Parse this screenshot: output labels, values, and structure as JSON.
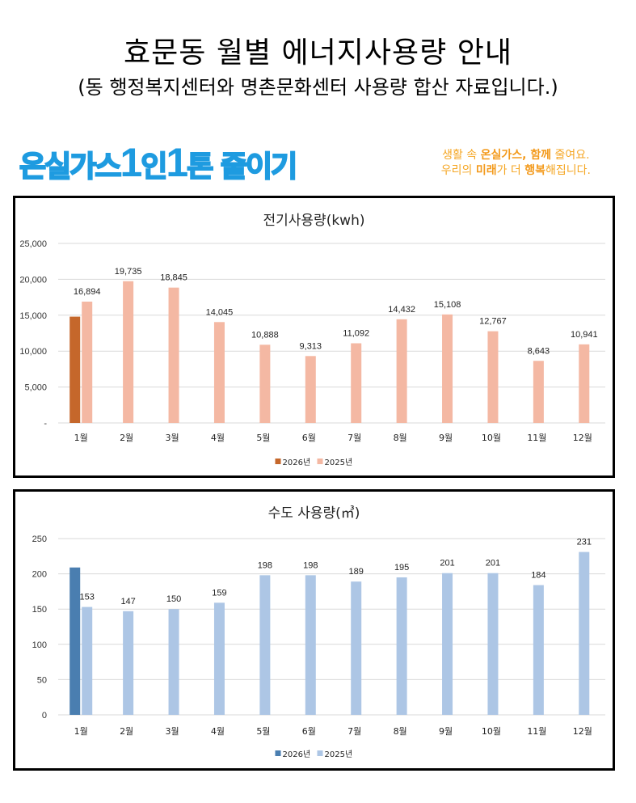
{
  "header": {
    "title": "효문동 월별 에너지사용량 안내",
    "subtitle": "(동 행정복지센터와 명촌문화센터 사용량 합산 자료입니다.)"
  },
  "banner": {
    "slogan_parts": [
      "온실가스",
      "1",
      "인",
      "1",
      "톤 줄이기"
    ],
    "tagline_line1_parts": [
      "생활 속 ",
      "온실가스, 함께",
      " 줄여요."
    ],
    "tagline_line2_parts": [
      "우리의 ",
      "미래",
      "가 더 ",
      "행복",
      "해집니다."
    ]
  },
  "chart_data": [
    {
      "type": "bar",
      "title": "전기사용량(kwh)",
      "categories": [
        "1월",
        "2월",
        "3월",
        "4월",
        "5월",
        "6월",
        "7월",
        "8월",
        "9월",
        "10월",
        "11월",
        "12월"
      ],
      "series": [
        {
          "name": "2026년",
          "color": "#c5672b",
          "values": [
            14800,
            null,
            null,
            null,
            null,
            null,
            null,
            null,
            null,
            null,
            null,
            null
          ],
          "labels": false
        },
        {
          "name": "2025년",
          "color": "#f4b8a3",
          "values": [
            16894,
            19735,
            18845,
            14045,
            10888,
            9313,
            11092,
            14432,
            15108,
            12767,
            8643,
            10941
          ],
          "labels": true
        }
      ],
      "yticks": [
        0,
        5000,
        10000,
        15000,
        20000,
        25000
      ],
      "ytick_labels": [
        "-",
        "5,000",
        "10,000",
        "15,000",
        "20,000",
        "25,000"
      ],
      "ylim": [
        0,
        25000
      ],
      "grid": true,
      "legend": "bottom",
      "xlabel": "",
      "ylabel": ""
    },
    {
      "type": "bar",
      "title": "수도 사용량(㎥)",
      "categories": [
        "1월",
        "2월",
        "3월",
        "4월",
        "5월",
        "6월",
        "7월",
        "8월",
        "9월",
        "10월",
        "11월",
        "12월"
      ],
      "series": [
        {
          "name": "2026년",
          "color": "#4a7eb0",
          "values": [
            209,
            null,
            null,
            null,
            null,
            null,
            null,
            null,
            null,
            null,
            null,
            null
          ],
          "labels": false
        },
        {
          "name": "2025년",
          "color": "#adc6e5",
          "values": [
            153,
            147,
            150,
            159,
            198,
            198,
            189,
            195,
            201,
            201,
            184,
            231
          ],
          "labels": true
        }
      ],
      "yticks": [
        0,
        50,
        100,
        150,
        200,
        250
      ],
      "ytick_labels": [
        "0",
        "50",
        "100",
        "150",
        "200",
        "250"
      ],
      "ylim": [
        0,
        250
      ],
      "grid": true,
      "legend": "bottom",
      "xlabel": "",
      "ylabel": ""
    }
  ]
}
